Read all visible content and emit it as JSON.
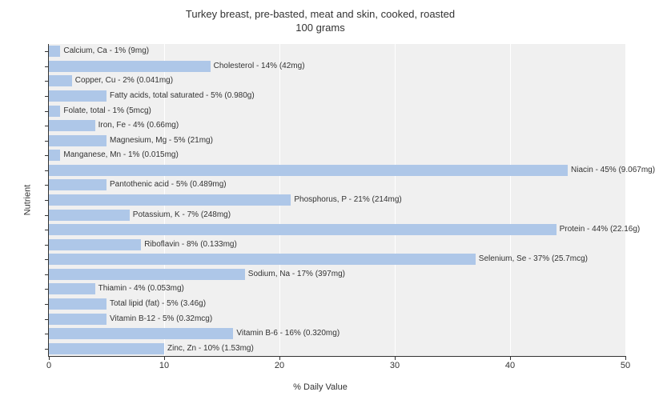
{
  "title_line1": "Turkey breast, pre-basted, meat and skin, cooked, roasted",
  "title_line2": "100 grams",
  "y_axis_label": "Nutrient",
  "x_axis_label": "% Daily Value",
  "chart": {
    "type": "bar",
    "orientation": "horizontal",
    "bar_color": "#aec7e8",
    "background_color": "#f0f0f0",
    "grid_color": "#ffffff",
    "text_color": "#333333",
    "xlim": [
      0,
      50
    ],
    "xtick_step": 10,
    "xticks": [
      0,
      10,
      20,
      30,
      40,
      50
    ],
    "title_fontsize": 13,
    "label_fontsize": 11,
    "bar_label_fontsize": 10,
    "bars": [
      {
        "label": "Calcium, Ca - 1% (9mg)",
        "value": 1
      },
      {
        "label": "Cholesterol - 14% (42mg)",
        "value": 14
      },
      {
        "label": "Copper, Cu - 2% (0.041mg)",
        "value": 2
      },
      {
        "label": "Fatty acids, total saturated - 5% (0.980g)",
        "value": 5
      },
      {
        "label": "Folate, total - 1% (5mcg)",
        "value": 1
      },
      {
        "label": "Iron, Fe - 4% (0.66mg)",
        "value": 4
      },
      {
        "label": "Magnesium, Mg - 5% (21mg)",
        "value": 5
      },
      {
        "label": "Manganese, Mn - 1% (0.015mg)",
        "value": 1
      },
      {
        "label": "Niacin - 45% (9.067mg)",
        "value": 45
      },
      {
        "label": "Pantothenic acid - 5% (0.489mg)",
        "value": 5
      },
      {
        "label": "Phosphorus, P - 21% (214mg)",
        "value": 21
      },
      {
        "label": "Potassium, K - 7% (248mg)",
        "value": 7
      },
      {
        "label": "Protein - 44% (22.16g)",
        "value": 44
      },
      {
        "label": "Riboflavin - 8% (0.133mg)",
        "value": 8
      },
      {
        "label": "Selenium, Se - 37% (25.7mcg)",
        "value": 37
      },
      {
        "label": "Sodium, Na - 17% (397mg)",
        "value": 17
      },
      {
        "label": "Thiamin - 4% (0.053mg)",
        "value": 4
      },
      {
        "label": "Total lipid (fat) - 5% (3.46g)",
        "value": 5
      },
      {
        "label": "Vitamin B-12 - 5% (0.32mcg)",
        "value": 5
      },
      {
        "label": "Vitamin B-6 - 16% (0.320mg)",
        "value": 16
      },
      {
        "label": "Zinc, Zn - 10% (1.53mg)",
        "value": 10
      }
    ]
  }
}
